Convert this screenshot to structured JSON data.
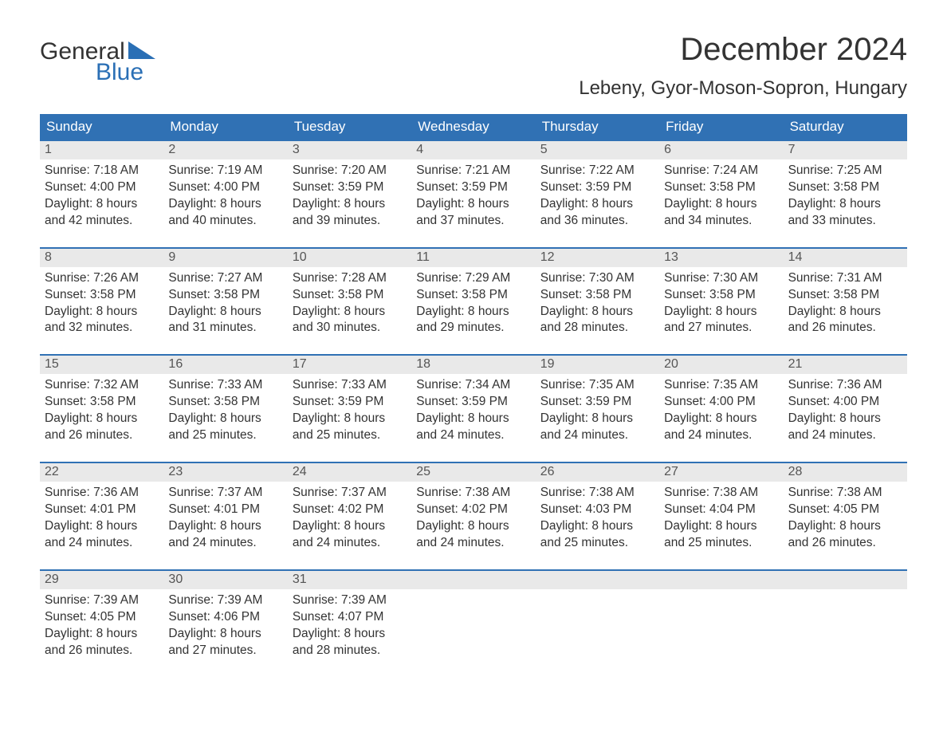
{
  "colors": {
    "header_bg": "#3071b4",
    "header_text": "#ffffff",
    "daynum_bg": "#e9e9e9",
    "daynum_text": "#555555",
    "border": "#3071b4",
    "body_text": "#333333",
    "logo_blue": "#2a6fb5"
  },
  "logo": {
    "line1": "General",
    "line2": "Blue"
  },
  "title": "December 2024",
  "subtitle": "Lebeny, Gyor-Moson-Sopron, Hungary",
  "day_headers": [
    "Sunday",
    "Monday",
    "Tuesday",
    "Wednesday",
    "Thursday",
    "Friday",
    "Saturday"
  ],
  "weeks": [
    [
      {
        "n": "1",
        "sunrise": "Sunrise: 7:18 AM",
        "sunset": "Sunset: 4:00 PM",
        "d1": "Daylight: 8 hours",
        "d2": "and 42 minutes."
      },
      {
        "n": "2",
        "sunrise": "Sunrise: 7:19 AM",
        "sunset": "Sunset: 4:00 PM",
        "d1": "Daylight: 8 hours",
        "d2": "and 40 minutes."
      },
      {
        "n": "3",
        "sunrise": "Sunrise: 7:20 AM",
        "sunset": "Sunset: 3:59 PM",
        "d1": "Daylight: 8 hours",
        "d2": "and 39 minutes."
      },
      {
        "n": "4",
        "sunrise": "Sunrise: 7:21 AM",
        "sunset": "Sunset: 3:59 PM",
        "d1": "Daylight: 8 hours",
        "d2": "and 37 minutes."
      },
      {
        "n": "5",
        "sunrise": "Sunrise: 7:22 AM",
        "sunset": "Sunset: 3:59 PM",
        "d1": "Daylight: 8 hours",
        "d2": "and 36 minutes."
      },
      {
        "n": "6",
        "sunrise": "Sunrise: 7:24 AM",
        "sunset": "Sunset: 3:58 PM",
        "d1": "Daylight: 8 hours",
        "d2": "and 34 minutes."
      },
      {
        "n": "7",
        "sunrise": "Sunrise: 7:25 AM",
        "sunset": "Sunset: 3:58 PM",
        "d1": "Daylight: 8 hours",
        "d2": "and 33 minutes."
      }
    ],
    [
      {
        "n": "8",
        "sunrise": "Sunrise: 7:26 AM",
        "sunset": "Sunset: 3:58 PM",
        "d1": "Daylight: 8 hours",
        "d2": "and 32 minutes."
      },
      {
        "n": "9",
        "sunrise": "Sunrise: 7:27 AM",
        "sunset": "Sunset: 3:58 PM",
        "d1": "Daylight: 8 hours",
        "d2": "and 31 minutes."
      },
      {
        "n": "10",
        "sunrise": "Sunrise: 7:28 AM",
        "sunset": "Sunset: 3:58 PM",
        "d1": "Daylight: 8 hours",
        "d2": "and 30 minutes."
      },
      {
        "n": "11",
        "sunrise": "Sunrise: 7:29 AM",
        "sunset": "Sunset: 3:58 PM",
        "d1": "Daylight: 8 hours",
        "d2": "and 29 minutes."
      },
      {
        "n": "12",
        "sunrise": "Sunrise: 7:30 AM",
        "sunset": "Sunset: 3:58 PM",
        "d1": "Daylight: 8 hours",
        "d2": "and 28 minutes."
      },
      {
        "n": "13",
        "sunrise": "Sunrise: 7:30 AM",
        "sunset": "Sunset: 3:58 PM",
        "d1": "Daylight: 8 hours",
        "d2": "and 27 minutes."
      },
      {
        "n": "14",
        "sunrise": "Sunrise: 7:31 AM",
        "sunset": "Sunset: 3:58 PM",
        "d1": "Daylight: 8 hours",
        "d2": "and 26 minutes."
      }
    ],
    [
      {
        "n": "15",
        "sunrise": "Sunrise: 7:32 AM",
        "sunset": "Sunset: 3:58 PM",
        "d1": "Daylight: 8 hours",
        "d2": "and 26 minutes."
      },
      {
        "n": "16",
        "sunrise": "Sunrise: 7:33 AM",
        "sunset": "Sunset: 3:58 PM",
        "d1": "Daylight: 8 hours",
        "d2": "and 25 minutes."
      },
      {
        "n": "17",
        "sunrise": "Sunrise: 7:33 AM",
        "sunset": "Sunset: 3:59 PM",
        "d1": "Daylight: 8 hours",
        "d2": "and 25 minutes."
      },
      {
        "n": "18",
        "sunrise": "Sunrise: 7:34 AM",
        "sunset": "Sunset: 3:59 PM",
        "d1": "Daylight: 8 hours",
        "d2": "and 24 minutes."
      },
      {
        "n": "19",
        "sunrise": "Sunrise: 7:35 AM",
        "sunset": "Sunset: 3:59 PM",
        "d1": "Daylight: 8 hours",
        "d2": "and 24 minutes."
      },
      {
        "n": "20",
        "sunrise": "Sunrise: 7:35 AM",
        "sunset": "Sunset: 4:00 PM",
        "d1": "Daylight: 8 hours",
        "d2": "and 24 minutes."
      },
      {
        "n": "21",
        "sunrise": "Sunrise: 7:36 AM",
        "sunset": "Sunset: 4:00 PM",
        "d1": "Daylight: 8 hours",
        "d2": "and 24 minutes."
      }
    ],
    [
      {
        "n": "22",
        "sunrise": "Sunrise: 7:36 AM",
        "sunset": "Sunset: 4:01 PM",
        "d1": "Daylight: 8 hours",
        "d2": "and 24 minutes."
      },
      {
        "n": "23",
        "sunrise": "Sunrise: 7:37 AM",
        "sunset": "Sunset: 4:01 PM",
        "d1": "Daylight: 8 hours",
        "d2": "and 24 minutes."
      },
      {
        "n": "24",
        "sunrise": "Sunrise: 7:37 AM",
        "sunset": "Sunset: 4:02 PM",
        "d1": "Daylight: 8 hours",
        "d2": "and 24 minutes."
      },
      {
        "n": "25",
        "sunrise": "Sunrise: 7:38 AM",
        "sunset": "Sunset: 4:02 PM",
        "d1": "Daylight: 8 hours",
        "d2": "and 24 minutes."
      },
      {
        "n": "26",
        "sunrise": "Sunrise: 7:38 AM",
        "sunset": "Sunset: 4:03 PM",
        "d1": "Daylight: 8 hours",
        "d2": "and 25 minutes."
      },
      {
        "n": "27",
        "sunrise": "Sunrise: 7:38 AM",
        "sunset": "Sunset: 4:04 PM",
        "d1": "Daylight: 8 hours",
        "d2": "and 25 minutes."
      },
      {
        "n": "28",
        "sunrise": "Sunrise: 7:38 AM",
        "sunset": "Sunset: 4:05 PM",
        "d1": "Daylight: 8 hours",
        "d2": "and 26 minutes."
      }
    ],
    [
      {
        "n": "29",
        "sunrise": "Sunrise: 7:39 AM",
        "sunset": "Sunset: 4:05 PM",
        "d1": "Daylight: 8 hours",
        "d2": "and 26 minutes."
      },
      {
        "n": "30",
        "sunrise": "Sunrise: 7:39 AM",
        "sunset": "Sunset: 4:06 PM",
        "d1": "Daylight: 8 hours",
        "d2": "and 27 minutes."
      },
      {
        "n": "31",
        "sunrise": "Sunrise: 7:39 AM",
        "sunset": "Sunset: 4:07 PM",
        "d1": "Daylight: 8 hours",
        "d2": "and 28 minutes."
      },
      {
        "n": "",
        "sunrise": "",
        "sunset": "",
        "d1": "",
        "d2": ""
      },
      {
        "n": "",
        "sunrise": "",
        "sunset": "",
        "d1": "",
        "d2": ""
      },
      {
        "n": "",
        "sunrise": "",
        "sunset": "",
        "d1": "",
        "d2": ""
      },
      {
        "n": "",
        "sunrise": "",
        "sunset": "",
        "d1": "",
        "d2": ""
      }
    ]
  ]
}
